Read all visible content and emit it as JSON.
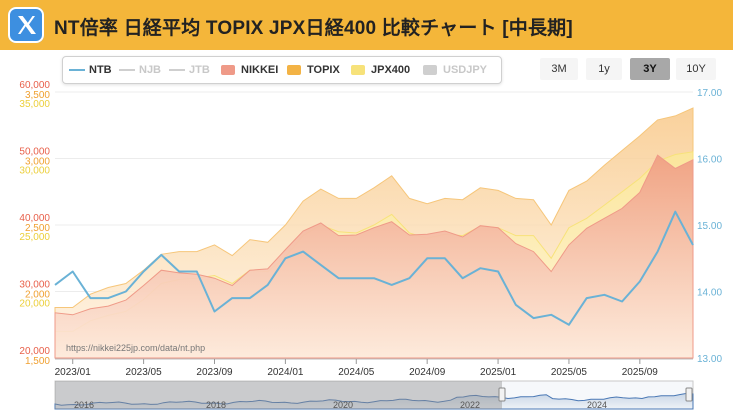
{
  "header": {
    "title": "NT倍率 日経平均 TOPIX JPX日経400 比較チャート [中長期]",
    "logo_icon": "x-logo-icon",
    "background": "#f4b63a"
  },
  "legend": [
    {
      "label": "NTB",
      "color": "#6ab2d6",
      "kind": "line",
      "active": true
    },
    {
      "label": "NJB",
      "color": "#cfcfcf",
      "kind": "line",
      "active": false
    },
    {
      "label": "JTB",
      "color": "#cfcfcf",
      "kind": "line",
      "active": false
    },
    {
      "label": "NIKKEI",
      "color": "#ef9a88",
      "kind": "box",
      "active": true
    },
    {
      "label": "TOPIX",
      "color": "#f3b345",
      "kind": "box",
      "active": true
    },
    {
      "label": "JPX400",
      "color": "#f7e27a",
      "kind": "box",
      "active": true
    },
    {
      "label": "USDJPY",
      "color": "#cfcfcf",
      "kind": "box",
      "active": false
    }
  ],
  "range_buttons": [
    {
      "label": "3M",
      "active": false
    },
    {
      "label": "1y",
      "active": false
    },
    {
      "label": "3Y",
      "active": true
    },
    {
      "label": "10Y",
      "active": false
    }
  ],
  "watermark": "https://nikkei225jp.com/data/nt.php",
  "navigator": {
    "years": [
      "2016",
      "2018",
      "2020",
      "2022",
      "2024"
    ]
  },
  "chart_data": {
    "type": "area",
    "x": [
      "2022-12",
      "2023-01",
      "2023-02",
      "2023-03",
      "2023-04",
      "2023-05",
      "2023-06",
      "2023-07",
      "2023-08",
      "2023-09",
      "2023-10",
      "2023-11",
      "2023-12",
      "2024-01",
      "2024-02",
      "2024-03",
      "2024-04",
      "2024-05",
      "2024-06",
      "2024-07",
      "2024-08",
      "2024-09",
      "2024-10",
      "2024-11",
      "2024-12",
      "2025-01",
      "2025-02",
      "2025-03",
      "2025-04",
      "2025-05",
      "2025-06",
      "2025-07",
      "2025-08",
      "2025-09",
      "2025-10",
      "2025-11",
      "2025-12"
    ],
    "xticks": [
      "2023/01",
      "2023/05",
      "2023/09",
      "2024/01",
      "2024/05",
      "2024/09",
      "2025/01",
      "2025/05",
      "2025/09"
    ],
    "axes": {
      "nikkei": {
        "color": "#e8604a",
        "ylim": [
          20000,
          60000
        ],
        "ticks": [
          "20,000",
          "30,000",
          "40,000",
          "50,000",
          "60,000"
        ]
      },
      "topix": {
        "color": "#f0a030",
        "ylim": [
          1500,
          3500
        ],
        "ticks": [
          "1,500",
          "2,000",
          "2,500",
          "3,000",
          "3,500"
        ]
      },
      "jpx400": {
        "color": "#eccf3a",
        "ylim": [
          15000,
          35000
        ],
        "ticks": [
          "20,000",
          "25,000",
          "30,000",
          "35,000"
        ]
      },
      "ntb": {
        "color": "#6ab2d6",
        "ylim": [
          13,
          17
        ],
        "ticks": [
          "13.00",
          "14.00",
          "15.00",
          "16.00",
          "17.00"
        ]
      }
    },
    "series": [
      {
        "name": "NIKKEI",
        "axis": "nikkei",
        "color": "#ef9a88",
        "values": [
          26800,
          26500,
          27400,
          27800,
          28700,
          30900,
          33200,
          32800,
          32600,
          32000,
          30900,
          33200,
          33400,
          36300,
          39100,
          40300,
          38400,
          38500,
          39600,
          40500,
          38500,
          38600,
          39100,
          38200,
          39900,
          39600,
          37200,
          36000,
          33000,
          37000,
          39500,
          41000,
          42500,
          44900,
          50500,
          48500,
          49800
        ]
      },
      {
        "name": "TOPIX",
        "axis": "topix",
        "color": "#f3b345",
        "values": [
          1880,
          1880,
          1980,
          2030,
          2060,
          2160,
          2280,
          2300,
          2300,
          2350,
          2270,
          2390,
          2370,
          2500,
          2680,
          2770,
          2700,
          2700,
          2780,
          2870,
          2700,
          2660,
          2700,
          2690,
          2780,
          2760,
          2700,
          2690,
          2500,
          2760,
          2830,
          2950,
          3060,
          3170,
          3290,
          3320,
          3380
        ]
      },
      {
        "name": "JPX400",
        "axis": "jpx400",
        "color": "#f7e27a",
        "values": [
          17000,
          17000,
          17800,
          18200,
          18500,
          19400,
          20600,
          20900,
          21000,
          21200,
          20600,
          21600,
          21500,
          22600,
          24200,
          25000,
          24500,
          24400,
          25000,
          25800,
          24400,
          24000,
          24300,
          24200,
          24900,
          24800,
          24200,
          24200,
          22500,
          24800,
          25500,
          26500,
          27500,
          28500,
          29800,
          30300,
          30500
        ]
      },
      {
        "name": "NTB",
        "axis": "ntb",
        "color": "#6ab2d6",
        "values": [
          14.1,
          14.3,
          13.9,
          13.9,
          14.0,
          14.3,
          14.55,
          14.3,
          14.3,
          13.7,
          13.9,
          13.9,
          14.1,
          14.5,
          14.6,
          14.4,
          14.2,
          14.2,
          14.2,
          14.1,
          14.2,
          14.5,
          14.5,
          14.2,
          14.35,
          14.3,
          13.8,
          13.6,
          13.65,
          13.5,
          13.9,
          13.95,
          13.85,
          14.15,
          14.6,
          15.2,
          14.7
        ]
      }
    ]
  }
}
